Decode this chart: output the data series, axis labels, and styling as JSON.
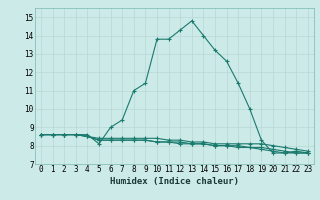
{
  "xlabel": "Humidex (Indice chaleur)",
  "background_color": "#cceae7",
  "line_color": "#1a7a6e",
  "grid_color": "#b8d8d5",
  "xlim": [
    -0.5,
    23.5
  ],
  "ylim": [
    7,
    15.5
  ],
  "yticks": [
    7,
    8,
    9,
    10,
    11,
    12,
    13,
    14,
    15
  ],
  "xticks": [
    0,
    1,
    2,
    3,
    4,
    5,
    6,
    7,
    8,
    9,
    10,
    11,
    12,
    13,
    14,
    15,
    16,
    17,
    18,
    19,
    20,
    21,
    22,
    23
  ],
  "series": [
    {
      "x": [
        0,
        1,
        2,
        3,
        4,
        5,
        6,
        7,
        8,
        9,
        10,
        11,
        12,
        13,
        14,
        15,
        16,
        17,
        18,
        19,
        20,
        21,
        22,
        23
      ],
      "y": [
        8.6,
        8.6,
        8.6,
        8.6,
        8.6,
        8.1,
        9.0,
        9.4,
        11.0,
        11.4,
        13.8,
        13.8,
        14.3,
        14.8,
        14.0,
        13.2,
        12.6,
        11.4,
        10.0,
        8.3,
        7.6,
        7.6,
        7.7,
        7.6
      ]
    },
    {
      "x": [
        0,
        1,
        2,
        3,
        4,
        5,
        6,
        7,
        8,
        9,
        10,
        11,
        12,
        13,
        14,
        15,
        16,
        17,
        18,
        19,
        20,
        21,
        22,
        23
      ],
      "y": [
        8.6,
        8.6,
        8.6,
        8.6,
        8.5,
        8.4,
        8.4,
        8.4,
        8.4,
        8.4,
        8.4,
        8.3,
        8.3,
        8.2,
        8.2,
        8.1,
        8.1,
        8.1,
        8.1,
        8.1,
        8.0,
        7.9,
        7.8,
        7.7
      ]
    },
    {
      "x": [
        0,
        1,
        2,
        3,
        4,
        5,
        6,
        7,
        8,
        9,
        10,
        11,
        12,
        13,
        14,
        15,
        16,
        17,
        18,
        19,
        20,
        21,
        22,
        23
      ],
      "y": [
        8.6,
        8.6,
        8.6,
        8.6,
        8.5,
        8.3,
        8.3,
        8.3,
        8.3,
        8.3,
        8.2,
        8.2,
        8.2,
        8.1,
        8.1,
        8.0,
        8.0,
        8.0,
        7.9,
        7.9,
        7.8,
        7.7,
        7.6,
        7.6
      ]
    },
    {
      "x": [
        0,
        1,
        2,
        3,
        4,
        5,
        6,
        7,
        8,
        9,
        10,
        11,
        12,
        13,
        14,
        15,
        16,
        17,
        18,
        19,
        20,
        21,
        22,
        23
      ],
      "y": [
        8.6,
        8.6,
        8.6,
        8.6,
        8.5,
        8.3,
        8.3,
        8.3,
        8.3,
        8.3,
        8.2,
        8.2,
        8.1,
        8.1,
        8.1,
        8.0,
        8.0,
        7.9,
        7.9,
        7.8,
        7.7,
        7.6,
        7.6,
        7.6
      ]
    }
  ]
}
